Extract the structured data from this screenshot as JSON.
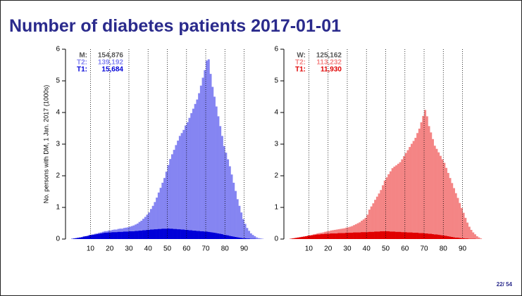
{
  "slide": {
    "title": "Number of diabetes patients 2017-01-01",
    "page": "22/ 54"
  },
  "chart_data": [
    {
      "type": "histogram",
      "ylabel": "No. persons with DM, 1 Jan. 2017 (1000s)",
      "bins": [
        0,
        1,
        2,
        3,
        4,
        5,
        6,
        7,
        8,
        9,
        10,
        11,
        12,
        13,
        14,
        15,
        16,
        17,
        18,
        19,
        20,
        21,
        22,
        23,
        24,
        25,
        26,
        27,
        28,
        29,
        30,
        31,
        32,
        33,
        34,
        35,
        36,
        37,
        38,
        39,
        40,
        41,
        42,
        43,
        44,
        45,
        46,
        47,
        48,
        49,
        50,
        51,
        52,
        53,
        54,
        55,
        56,
        57,
        58,
        59,
        60,
        61,
        62,
        63,
        64,
        65,
        66,
        67,
        68,
        69,
        70,
        71,
        72,
        73,
        74,
        75,
        76,
        77,
        78,
        79,
        80,
        81,
        82,
        83,
        84,
        85,
        86,
        87,
        88,
        89,
        90,
        91,
        92,
        93,
        94,
        95,
        96,
        97,
        98,
        99,
        100
      ],
      "stacked": true,
      "series": [
        {
          "name": "T1:",
          "color": "#0000d8",
          "values": [
            0.01,
            0.02,
            0.03,
            0.04,
            0.05,
            0.06,
            0.08,
            0.09,
            0.1,
            0.12,
            0.13,
            0.14,
            0.15,
            0.16,
            0.17,
            0.18,
            0.19,
            0.2,
            0.2,
            0.21,
            0.21,
            0.22,
            0.22,
            0.22,
            0.23,
            0.23,
            0.23,
            0.24,
            0.24,
            0.24,
            0.25,
            0.25,
            0.25,
            0.26,
            0.26,
            0.27,
            0.27,
            0.28,
            0.28,
            0.29,
            0.29,
            0.3,
            0.3,
            0.31,
            0.31,
            0.32,
            0.32,
            0.33,
            0.33,
            0.33,
            0.34,
            0.33,
            0.33,
            0.32,
            0.32,
            0.31,
            0.31,
            0.3,
            0.3,
            0.29,
            0.29,
            0.28,
            0.28,
            0.27,
            0.27,
            0.26,
            0.26,
            0.25,
            0.25,
            0.24,
            0.24,
            0.23,
            0.22,
            0.21,
            0.2,
            0.19,
            0.18,
            0.17,
            0.16,
            0.14,
            0.13,
            0.12,
            0.1,
            0.09,
            0.08,
            0.07,
            0.06,
            0.05,
            0.04,
            0.03,
            0.03,
            0.02,
            0.02,
            0.01,
            0.01,
            0.01,
            0,
            0,
            0,
            0
          ]
        },
        {
          "name": "T2:",
          "color": "#8585f2",
          "values": [
            0,
            0,
            0,
            0,
            0,
            0,
            0,
            0,
            0,
            0.01,
            0.01,
            0.01,
            0.02,
            0.02,
            0.03,
            0.03,
            0.04,
            0.05,
            0.05,
            0.06,
            0.06,
            0.07,
            0.08,
            0.08,
            0.09,
            0.1,
            0.1,
            0.11,
            0.12,
            0.13,
            0.14,
            0.16,
            0.18,
            0.2,
            0.23,
            0.27,
            0.31,
            0.36,
            0.42,
            0.48,
            0.55,
            0.65,
            0.75,
            0.86,
            1.0,
            1.15,
            1.3,
            1.45,
            1.6,
            1.8,
            2.0,
            2.2,
            2.35,
            2.5,
            2.65,
            2.8,
            2.95,
            3.05,
            3.15,
            3.3,
            3.4,
            3.55,
            3.7,
            3.85,
            4.0,
            4.15,
            4.35,
            4.6,
            4.85,
            5.1,
            5.4,
            5.45,
            5.0,
            4.6,
            4.3,
            4.0,
            3.7,
            3.4,
            3.1,
            2.8,
            2.6,
            2.4,
            2.2,
            1.95,
            1.7,
            1.45,
            1.2,
            1.0,
            0.8,
            0.6,
            0.45,
            0.33,
            0.24,
            0.17,
            0.12,
            0.08,
            0.05,
            0.03,
            0.02,
            0.01
          ]
        }
      ],
      "summary": [
        {
          "name": "M:",
          "count": "154,876",
          "color": "#555555"
        },
        {
          "name": "T2:",
          "count": "139,192",
          "color": "#8585f2"
        },
        {
          "name": "T1:",
          "count": "15,684",
          "color": "#0000d8"
        }
      ],
      "xlim": [
        -3,
        103
      ],
      "xticks": [
        10,
        20,
        30,
        40,
        50,
        60,
        70,
        80,
        90
      ],
      "ylim": [
        0,
        6
      ],
      "yticks": [
        0,
        1,
        2,
        3,
        4,
        5,
        6
      ],
      "grid": "x-dotted"
    },
    {
      "type": "histogram",
      "bins": [
        0,
        1,
        2,
        3,
        4,
        5,
        6,
        7,
        8,
        9,
        10,
        11,
        12,
        13,
        14,
        15,
        16,
        17,
        18,
        19,
        20,
        21,
        22,
        23,
        24,
        25,
        26,
        27,
        28,
        29,
        30,
        31,
        32,
        33,
        34,
        35,
        36,
        37,
        38,
        39,
        40,
        41,
        42,
        43,
        44,
        45,
        46,
        47,
        48,
        49,
        50,
        51,
        52,
        53,
        54,
        55,
        56,
        57,
        58,
        59,
        60,
        61,
        62,
        63,
        64,
        65,
        66,
        67,
        68,
        69,
        70,
        71,
        72,
        73,
        74,
        75,
        76,
        77,
        78,
        79,
        80,
        81,
        82,
        83,
        84,
        85,
        86,
        87,
        88,
        89,
        90,
        91,
        92,
        93,
        94,
        95,
        96,
        97,
        98,
        99,
        100
      ],
      "stacked": true,
      "series": [
        {
          "name": "T1:",
          "color": "#e00000",
          "values": [
            0.01,
            0.02,
            0.03,
            0.04,
            0.05,
            0.06,
            0.07,
            0.08,
            0.09,
            0.1,
            0.11,
            0.12,
            0.13,
            0.14,
            0.15,
            0.15,
            0.16,
            0.16,
            0.17,
            0.17,
            0.17,
            0.18,
            0.18,
            0.18,
            0.18,
            0.19,
            0.19,
            0.19,
            0.19,
            0.2,
            0.2,
            0.2,
            0.2,
            0.21,
            0.21,
            0.21,
            0.21,
            0.22,
            0.22,
            0.22,
            0.22,
            0.23,
            0.23,
            0.23,
            0.24,
            0.24,
            0.24,
            0.25,
            0.25,
            0.25,
            0.25,
            0.25,
            0.24,
            0.24,
            0.24,
            0.23,
            0.23,
            0.23,
            0.22,
            0.22,
            0.22,
            0.21,
            0.21,
            0.21,
            0.2,
            0.2,
            0.2,
            0.19,
            0.19,
            0.19,
            0.18,
            0.18,
            0.17,
            0.17,
            0.16,
            0.15,
            0.15,
            0.14,
            0.13,
            0.12,
            0.11,
            0.1,
            0.09,
            0.08,
            0.07,
            0.06,
            0.05,
            0.05,
            0.04,
            0.03,
            0.03,
            0.02,
            0.02,
            0.01,
            0.01,
            0.01,
            0.01,
            0,
            0,
            0
          ]
        },
        {
          "name": "T2:",
          "color": "#f48585",
          "values": [
            0,
            0,
            0,
            0,
            0,
            0,
            0,
            0,
            0,
            0.01,
            0.01,
            0.01,
            0.02,
            0.02,
            0.03,
            0.04,
            0.04,
            0.05,
            0.06,
            0.07,
            0.08,
            0.09,
            0.1,
            0.11,
            0.12,
            0.12,
            0.13,
            0.14,
            0.15,
            0.16,
            0.17,
            0.19,
            0.21,
            0.23,
            0.26,
            0.29,
            0.32,
            0.36,
            0.4,
            0.45,
            0.55,
            0.7,
            0.8,
            0.9,
            1.0,
            1.1,
            1.2,
            1.3,
            1.45,
            1.6,
            1.7,
            1.8,
            1.9,
            2.0,
            2.05,
            2.1,
            2.15,
            2.2,
            2.3,
            2.4,
            2.5,
            2.6,
            2.7,
            2.8,
            2.9,
            3.0,
            3.15,
            3.3,
            3.5,
            3.7,
            3.9,
            3.7,
            3.4,
            3.2,
            3.0,
            2.8,
            2.7,
            2.6,
            2.5,
            2.4,
            2.3,
            2.15,
            2.0,
            1.85,
            1.7,
            1.55,
            1.4,
            1.25,
            1.1,
            0.95,
            0.8,
            0.65,
            0.5,
            0.38,
            0.28,
            0.2,
            0.14,
            0.09,
            0.05,
            0.02
          ]
        }
      ],
      "summary": [
        {
          "name": "W:",
          "count": "125,162",
          "color": "#555555"
        },
        {
          "name": "T2:",
          "count": "113,232",
          "color": "#f48585"
        },
        {
          "name": "T1:",
          "count": "11,930",
          "color": "#e00000"
        }
      ],
      "xlim": [
        -3,
        103
      ],
      "xticks": [
        10,
        20,
        30,
        40,
        50,
        60,
        70,
        80,
        90
      ],
      "ylim": [
        0,
        6
      ],
      "yticks": [
        0,
        1,
        2,
        3,
        4,
        5,
        6
      ],
      "grid": "x-dotted"
    }
  ]
}
